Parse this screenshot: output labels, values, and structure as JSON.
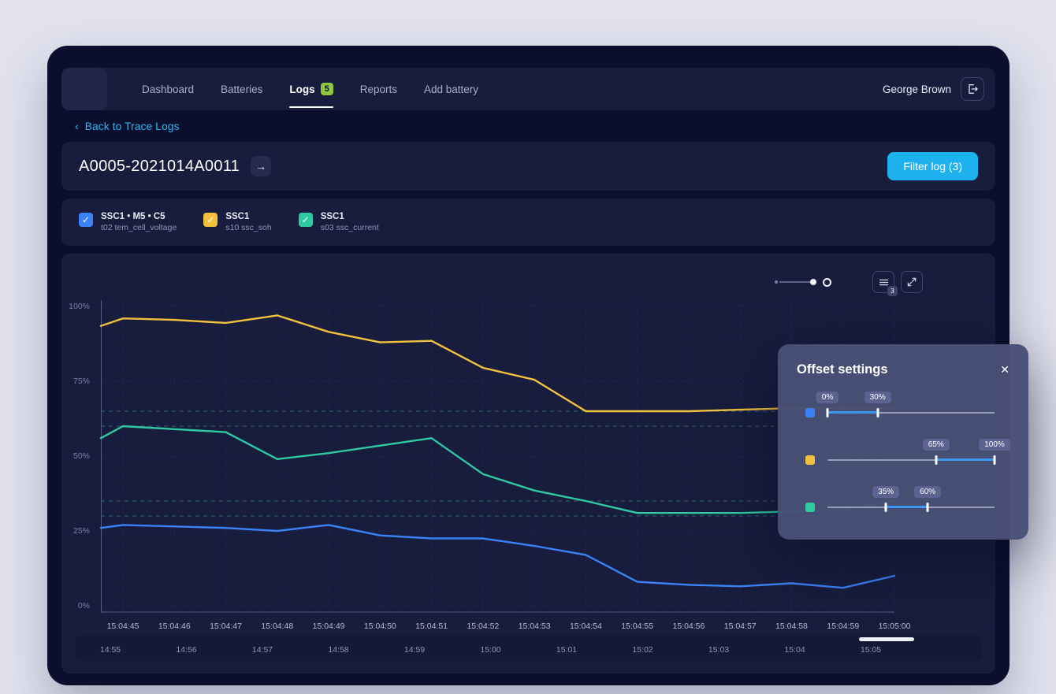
{
  "icons": {
    "back_chevron": "‹",
    "arrow_right": "→",
    "close": "✕",
    "check": "✓"
  },
  "header": {
    "nav": [
      {
        "label": "Dashboard",
        "active": false,
        "badge": null
      },
      {
        "label": "Batteries",
        "active": false,
        "badge": null
      },
      {
        "label": "Logs",
        "active": true,
        "badge": "5"
      },
      {
        "label": "Reports",
        "active": false,
        "badge": null
      },
      {
        "label": "Add battery",
        "active": false,
        "badge": null
      }
    ],
    "user": "George Brown"
  },
  "back_link": "Back to Trace Logs",
  "title_bar": {
    "title": "A0005-2021014A0011",
    "filter_button": "Filter log (3)"
  },
  "legend": {
    "items": [
      {
        "color": "#3b82f6",
        "name": "SSC1 • M5 • C5",
        "sub": "t02 tem_cell_voltage"
      },
      {
        "color": "#f2c13d",
        "name": "SSC1",
        "sub": "s10 ssc_soh"
      },
      {
        "color": "#2fc9a2",
        "name": "SSC1",
        "sub": "s03 ssc_current"
      }
    ]
  },
  "chart_controls": {
    "count_badge": "3"
  },
  "chart_data": {
    "type": "line",
    "x_ticks": [
      "15:04:45",
      "15:04:46",
      "15:04:47",
      "15:04:48",
      "15:04:49",
      "15:04:50",
      "15:04:51",
      "15:04:52",
      "15:04:53",
      "15:04:54",
      "15:04:55",
      "15:04:56",
      "15:04:57",
      "15:04:58",
      "15:04:59",
      "15:05:00"
    ],
    "y_ticks": [
      {
        "v": 0,
        "label": "0%"
      },
      {
        "v": 25,
        "label": "25%"
      },
      {
        "v": 50,
        "label": "50%"
      },
      {
        "v": 75,
        "label": "75%"
      },
      {
        "v": 100,
        "label": "100%"
      }
    ],
    "ylim": [
      0,
      100
    ],
    "grid": true,
    "reference_lines": [
      65,
      60,
      35,
      30
    ],
    "series": [
      {
        "name": "s10 ssc_soh",
        "color": "#f2c13d",
        "edge_value": 93.5,
        "values": [
          96,
          95.5,
          94.5,
          97,
          91.5,
          88,
          88.5,
          79.5,
          75.5,
          65,
          65,
          65,
          65.5,
          66,
          66,
          66
        ]
      },
      {
        "name": "s03 ssc_current",
        "color": "#2fc9a2",
        "edge_value": 56,
        "values": [
          60,
          59,
          58,
          49,
          51,
          53.5,
          56,
          44,
          38.5,
          35,
          31,
          31,
          31,
          31.5,
          32,
          35
        ]
      },
      {
        "name": "t02 tem_cell_voltage",
        "color": "#3b82f6",
        "edge_value": 26,
        "values": [
          27,
          26.5,
          26,
          25,
          27,
          23.5,
          22.5,
          22.5,
          20,
          17,
          8,
          7,
          6.5,
          7.5,
          6,
          10
        ]
      }
    ]
  },
  "timeline": {
    "labels": [
      "14:55",
      "14:56",
      "14:57",
      "14:58",
      "14:59",
      "15:00",
      "15:01",
      "15:02",
      "15:03",
      "15:04",
      "15:05"
    ]
  },
  "offset_panel": {
    "title": "Offset settings",
    "accent": "#3b9af0",
    "sliders": [
      {
        "color": "#3b82f6",
        "min": 0,
        "max": 30
      },
      {
        "color": "#f2c13d",
        "min": 65,
        "max": 100
      },
      {
        "color": "#2fc9a2",
        "min": 35,
        "max": 60
      }
    ]
  }
}
